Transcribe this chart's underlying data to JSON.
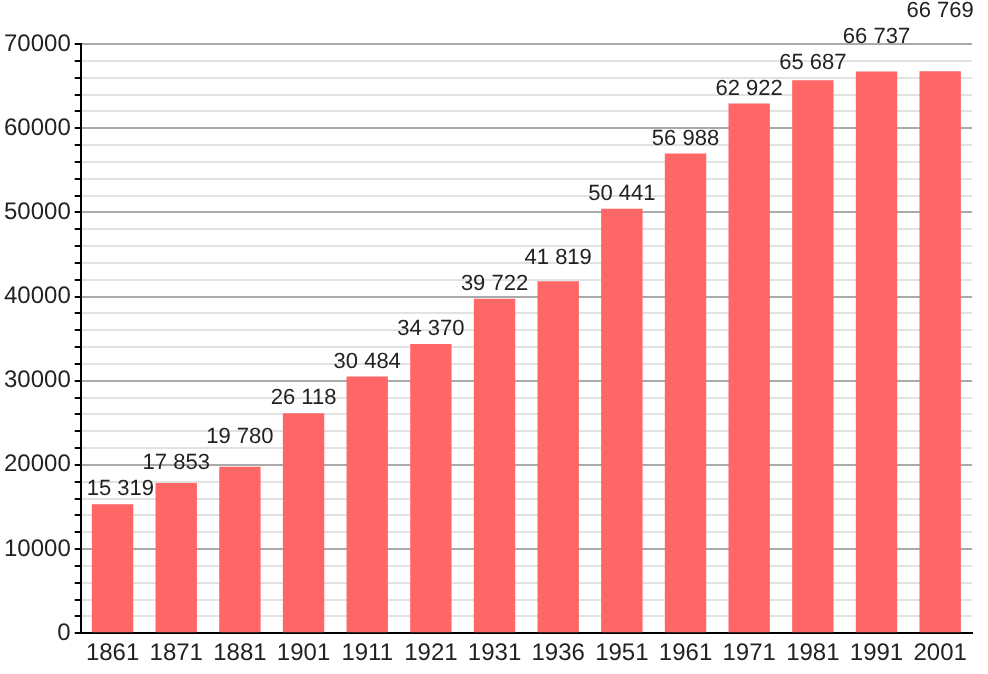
{
  "chart_data": {
    "type": "bar",
    "categories": [
      "1861",
      "1871",
      "1881",
      "1901",
      "1911",
      "1921",
      "1931",
      "1936",
      "1951",
      "1961",
      "1971",
      "1981",
      "1991",
      "2001"
    ],
    "values": [
      15319,
      17853,
      19780,
      26118,
      30484,
      34370,
      39722,
      41819,
      50441,
      56988,
      62922,
      65687,
      66737,
      66769
    ],
    "value_labels": [
      "15 319",
      "17 853",
      "19 780",
      "26 118",
      "30 484",
      "34 370",
      "39 722",
      "41 819",
      "50 441",
      "56 988",
      "62 922",
      "65 687",
      "66 737",
      "66 769"
    ],
    "color": "#ff6666",
    "ylim": [
      0,
      70000
    ],
    "yticks": [
      0,
      {
        "value": 2000,
        "label": null
      },
      {
        "value": 4000,
        "label": null
      },
      {
        "value": 6000,
        "label": null
      },
      {
        "value": 8000,
        "label": null
      },
      10000,
      {
        "value": 12000,
        "label": null
      },
      {
        "value": 14000,
        "label": null
      },
      {
        "value": 16000,
        "label": null
      },
      {
        "value": 18000,
        "label": null
      },
      20000,
      {
        "value": 22000,
        "label": null
      },
      {
        "value": 24000,
        "label": null
      },
      {
        "value": 26000,
        "label": null
      },
      {
        "value": 28000,
        "label": null
      },
      30000,
      {
        "value": 32000,
        "label": null
      },
      {
        "value": 34000,
        "label": null
      },
      {
        "value": 36000,
        "label": null
      },
      {
        "value": 38000,
        "label": null
      },
      40000,
      {
        "value": 42000,
        "label": null
      },
      {
        "value": 44000,
        "label": null
      },
      {
        "value": 46000,
        "label": null
      },
      {
        "value": 48000,
        "label": null
      },
      50000,
      {
        "value": 52000,
        "label": null
      },
      {
        "value": 54000,
        "label": null
      },
      {
        "value": 56000,
        "label": null
      },
      {
        "value": 58000,
        "label": null
      },
      60000,
      {
        "value": 62000,
        "label": null
      },
      {
        "value": 64000,
        "label": null
      },
      {
        "value": 66000,
        "label": null
      },
      {
        "value": 68000,
        "label": null
      },
      70000
    ],
    "grid": "y"
  }
}
